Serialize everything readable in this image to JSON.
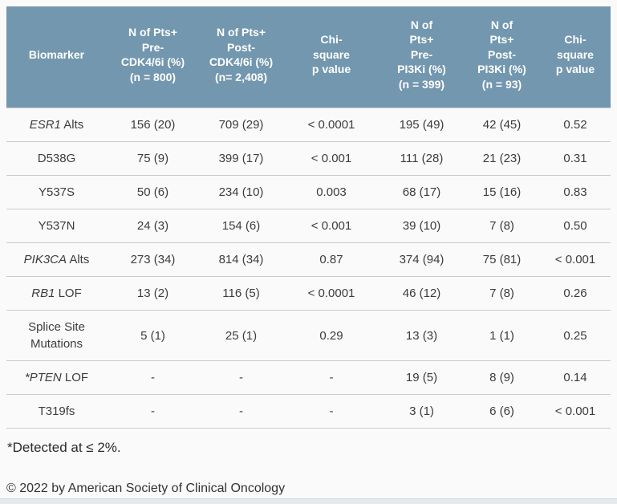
{
  "colors": {
    "header_bg": "#7397AF",
    "header_text": "#FFFFFF",
    "body_text": "#3C3C3C",
    "row_divider": "#CACACA",
    "page_bg": "#FAFAFA",
    "bottom_bar_bg": "#E6EAED"
  },
  "chart_data": {
    "type": "table",
    "columns": [
      "Biomarker",
      "N of Pts+\nPre-\nCDK4/6i (%)\n(n = 800)",
      "N of Pts+\nPost-\nCDK4/6i (%)\n(n= 2,408)",
      "Chi-\nsquare\np value",
      "N of\nPts+\nPre-\nPI3Ki (%)\n(n = 399)",
      "N of\nPts+\nPost-\nPI3Ki (%)\n(n = 93)",
      "Chi-\nsquare\np value"
    ],
    "rows": [
      {
        "biomarker": "ESR1 Alts",
        "italic": "ESR1",
        "rest": " Alts",
        "cells": [
          "156 (20)",
          "709 (29)",
          "< 0.0001",
          "195 (49)",
          "42 (45)",
          "0.52"
        ]
      },
      {
        "biomarker": "D538G",
        "italic": "",
        "rest": "D538G",
        "cells": [
          "75 (9)",
          "399 (17)",
          "< 0.001",
          "111 (28)",
          "21 (23)",
          "0.31"
        ]
      },
      {
        "biomarker": "Y537S",
        "italic": "",
        "rest": "Y537S",
        "cells": [
          "50 (6)",
          "234 (10)",
          "0.003",
          "68 (17)",
          "15 (16)",
          "0.83"
        ]
      },
      {
        "biomarker": "Y537N",
        "italic": "",
        "rest": "Y537N",
        "cells": [
          "24 (3)",
          "154 (6)",
          "< 0.001",
          "39 (10)",
          "7 (8)",
          "0.50"
        ]
      },
      {
        "biomarker": "PIK3CA Alts",
        "italic": "PIK3CA",
        "rest": " Alts",
        "cells": [
          "273 (34)",
          "814 (34)",
          "0.87",
          "374 (94)",
          "75 (81)",
          "< 0.001"
        ]
      },
      {
        "biomarker": "RB1 LOF",
        "italic": "RB1",
        "rest": " LOF",
        "cells": [
          "13 (2)",
          "116 (5)",
          "< 0.0001",
          "46 (12)",
          "7 (8)",
          "0.26"
        ]
      },
      {
        "biomarker": "Splice Site Mutations",
        "italic": "",
        "rest": "Splice Site Mutations",
        "cells": [
          "5 (1)",
          "25 (1)",
          "0.29",
          "13 (3)",
          "1 (1)",
          "0.25"
        ]
      },
      {
        "biomarker": "*PTEN LOF",
        "italic": "*PTEN",
        "rest": " LOF",
        "cells": [
          "-",
          "-",
          "-",
          "19 (5)",
          "8 (9)",
          "0.14"
        ]
      },
      {
        "biomarker": "T319fs",
        "italic": "",
        "rest": "T319fs",
        "cells": [
          "-",
          "-",
          "-",
          "3 (1)",
          "6 (6)",
          "< 0.001"
        ]
      }
    ],
    "footnote": "*Detected at ≤ 2%.",
    "copyright": "© 2022 by American Society of Clinical Oncology"
  }
}
